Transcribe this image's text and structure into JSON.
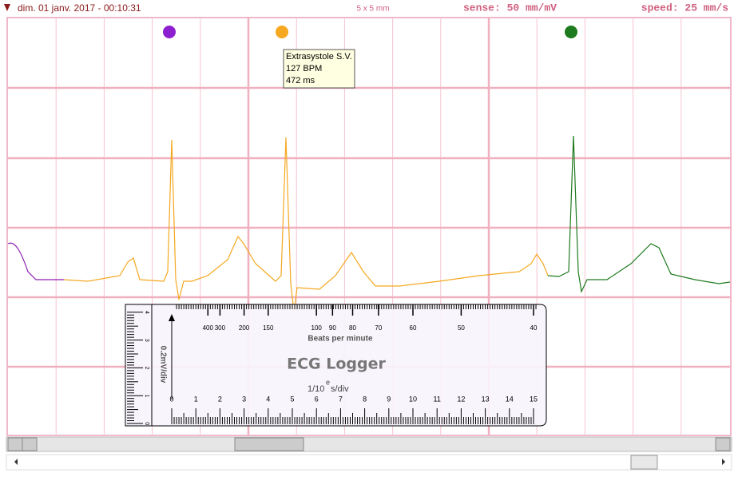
{
  "header": {
    "datetime": "dim. 01 janv. 2017 - 00:10:31",
    "grid_size": "5 x 5 mm",
    "sense": "sense: 50 mm/mV",
    "speed": "speed: 25 mm/s"
  },
  "tooltip": {
    "lines": [
      "Extrasystole S.V.",
      "127 BPM",
      "472 ms"
    ]
  },
  "ruler": {
    "title": "ECG Logger",
    "bpm_label": "Beats per minute",
    "bpm_ticks": [
      "400",
      "300",
      "200",
      "150",
      "100",
      "90",
      "80",
      "70",
      "60",
      "50",
      "40"
    ],
    "amplitude_label": "0.2mV/div",
    "amplitude_ticks": [
      "4",
      "3",
      "2",
      "1",
      "0"
    ],
    "time_ticks": [
      "0",
      "1",
      "2",
      "3",
      "4",
      "5",
      "6",
      "7",
      "8",
      "9",
      "10",
      "11",
      "12",
      "13",
      "14",
      "15"
    ],
    "time_label_base": "1/10",
    "time_label_exp": "e",
    "time_label_unit": "s/div"
  }
}
